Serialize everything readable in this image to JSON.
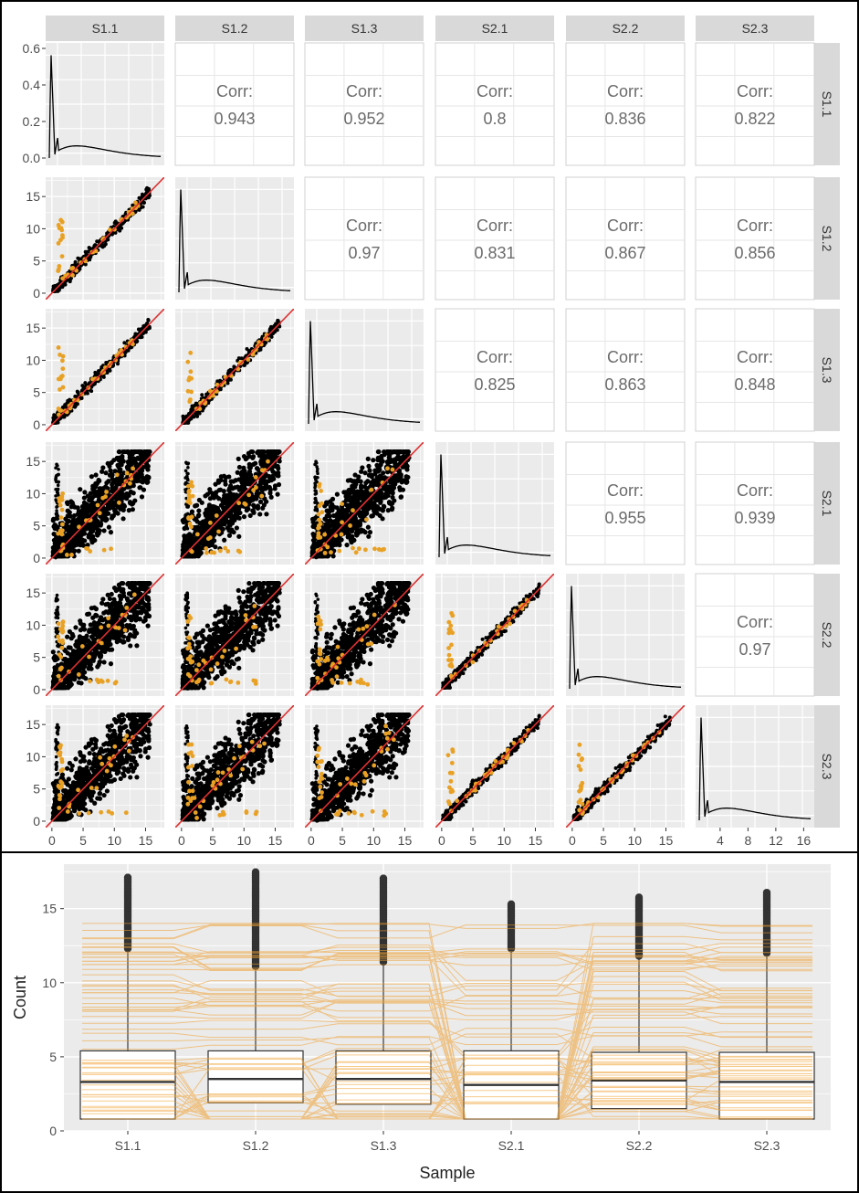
{
  "chart_data": [
    {
      "type": "scatter-matrix",
      "samples": [
        "S1.1",
        "S1.2",
        "S1.3",
        "S2.1",
        "S2.2",
        "S2.3"
      ],
      "corr_label": "Corr:",
      "correlations": [
        {
          "row": 0,
          "col": 1,
          "value": "0.943"
        },
        {
          "row": 0,
          "col": 2,
          "value": "0.952"
        },
        {
          "row": 0,
          "col": 3,
          "value": "0.8"
        },
        {
          "row": 0,
          "col": 4,
          "value": "0.836"
        },
        {
          "row": 0,
          "col": 5,
          "value": "0.822"
        },
        {
          "row": 1,
          "col": 2,
          "value": "0.97"
        },
        {
          "row": 1,
          "col": 3,
          "value": "0.831"
        },
        {
          "row": 1,
          "col": 4,
          "value": "0.867"
        },
        {
          "row": 1,
          "col": 5,
          "value": "0.856"
        },
        {
          "row": 2,
          "col": 3,
          "value": "0.825"
        },
        {
          "row": 2,
          "col": 4,
          "value": "0.863"
        },
        {
          "row": 2,
          "col": 5,
          "value": "0.848"
        },
        {
          "row": 3,
          "col": 4,
          "value": "0.955"
        },
        {
          "row": 3,
          "col": 5,
          "value": "0.939"
        },
        {
          "row": 4,
          "col": 5,
          "value": "0.97"
        }
      ],
      "density_yticks": [
        "0.0",
        "0.2",
        "0.4",
        "0.6"
      ],
      "density_ylim": [
        0,
        0.6
      ],
      "scatter_ticks": [
        "0",
        "5",
        "10",
        "15"
      ],
      "scatter_lim": [
        -1,
        18
      ],
      "last_col_xticks": [
        "4",
        "8",
        "12",
        "16"
      ],
      "last_col_xlim": [
        1,
        17
      ],
      "identity_line": "y = x",
      "grid": true,
      "colors": {
        "points": "#000000",
        "highlight": "#e8a125",
        "identity": "#e03030",
        "panel": "#ebebeb",
        "strip": "#d9d9d9"
      }
    },
    {
      "type": "box",
      "categories": [
        "S1.1",
        "S1.2",
        "S1.3",
        "S2.1",
        "S2.2",
        "S2.3"
      ],
      "xlabel": "Sample",
      "ylabel": "Count",
      "yticks": [
        "0",
        "5",
        "10",
        "15"
      ],
      "ylim": [
        0,
        18
      ],
      "boxes": [
        {
          "q1": 0.8,
          "median": 3.3,
          "q3": 5.4,
          "whisker_hi": 12.2,
          "outlier_max": 17.1
        },
        {
          "q1": 1.9,
          "median": 3.5,
          "q3": 5.4,
          "whisker_hi": 11.0,
          "outlier_max": 17.5
        },
        {
          "q1": 1.8,
          "median": 3.5,
          "q3": 5.4,
          "whisker_hi": 11.3,
          "outlier_max": 17.1
        },
        {
          "q1": 0.8,
          "median": 3.1,
          "q3": 5.4,
          "whisker_hi": 12.2,
          "outlier_max": 15.3
        },
        {
          "q1": 1.5,
          "median": 3.4,
          "q3": 5.3,
          "whisker_hi": 11.7,
          "outlier_max": 15.8
        },
        {
          "q1": 0.8,
          "median": 3.3,
          "q3": 5.3,
          "whisker_hi": 11.9,
          "outlier_max": 16.1
        }
      ],
      "highlight_lines": "orange lines link highlighted features across samples",
      "grid": true,
      "colors": {
        "box_fill": "#ffffff",
        "box_stroke": "#333333",
        "highlight": "#f0a030",
        "panel": "#ebebeb"
      }
    }
  ]
}
